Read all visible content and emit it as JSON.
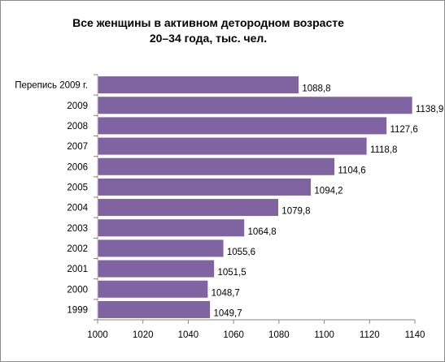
{
  "chart_data": {
    "type": "bar",
    "orientation": "horizontal",
    "title_lines": [
      "Все женщины в активном детородном возрасте",
      "20–34 года, тыс. чел."
    ],
    "categories": [
      "Перепись 2009 г.",
      "2009",
      "2008",
      "2007",
      "2006",
      "2005",
      "2004",
      "2003",
      "2002",
      "2001",
      "2000",
      "1999"
    ],
    "values": [
      1088.8,
      1138.9,
      1127.6,
      1118.8,
      1104.6,
      1094.2,
      1079.8,
      1064.8,
      1055.6,
      1051.5,
      1048.7,
      1049.7
    ],
    "data_labels": [
      "1088,8",
      "1138,9",
      "1127,6",
      "1118,8",
      "1104,6",
      "1094,2",
      "1079,8",
      "1064,8",
      "1055,6",
      "1051,5",
      "1048,7",
      "1049,7"
    ],
    "x_ticks": [
      1000,
      1020,
      1040,
      1060,
      1080,
      1100,
      1120,
      1140
    ],
    "xlim": [
      1000,
      1140
    ],
    "bar_color": "#8064a2",
    "grid": false,
    "legend": "none"
  }
}
